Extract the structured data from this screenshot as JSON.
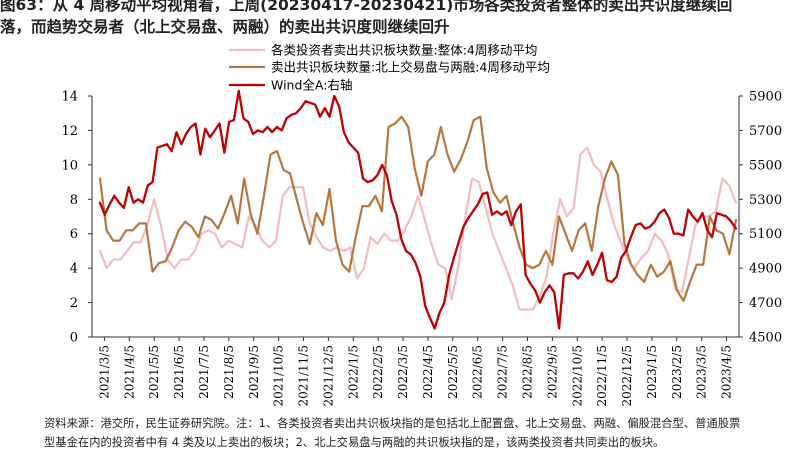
{
  "title": {
    "line1": "图63：从 4 周移动平均视角看，上周(20230417-20230421)市场各类投资者整体的卖出共识度继续回",
    "line2": "落，而趋势交易者（北上交易盘、两融）的卖出共识度则继续回升"
  },
  "source_note": {
    "line1": "资料来源：港交所，民生证券研究院。注：1、各类投资者卖出共识板块指的是包括北上配置盘、北上交易盘、两融、偏股混合型、普通股票",
    "line2": "型基金在内的投资者中有 4 类及以上卖出的板块；2、北上交易盘与两融的共识板块指的是，该两类投资者共同卖出的板块。"
  },
  "colors": {
    "overall": "#f2bcc2",
    "northbound_margin": "#b8763f",
    "wind_a": "#c00000"
  },
  "chart_data": {
    "type": "line",
    "x_ticks": [
      "2021/3/5",
      "2021/4/5",
      "2021/5/5",
      "2021/6/5",
      "2021/7/5",
      "2021/8/5",
      "2021/9/5",
      "2021/10/5",
      "2021/11/5",
      "2021/12/5",
      "2022/1/5",
      "2022/2/5",
      "2022/3/5",
      "2022/4/5",
      "2022/5/5",
      "2022/6/5",
      "2022/7/5",
      "2022/8/5",
      "2022/9/5",
      "2022/10/5",
      "2022/11/5",
      "2022/12/5",
      "2023/1/5",
      "2023/2/5",
      "2023/3/5",
      "2023/4/5"
    ],
    "y_left": {
      "min": 0,
      "max": 14,
      "ticks": [
        0,
        2,
        4,
        6,
        8,
        10,
        12,
        14
      ]
    },
    "y_right": {
      "min": 4500,
      "max": 5900,
      "ticks": [
        4500,
        4700,
        4900,
        5100,
        5300,
        5500,
        5700,
        5900
      ]
    },
    "grid": false,
    "legend_position": "top-center",
    "series": [
      {
        "name": "各类投资者卖出共识板块数量:整体:4周移动平均",
        "axis": "left",
        "values": [
          5.0,
          4.0,
          4.5,
          4.5,
          5.0,
          5.5,
          5.5,
          6.5,
          8.0,
          6.5,
          4.5,
          4.0,
          4.5,
          4.5,
          5.0,
          6.0,
          6.2,
          6.0,
          5.2,
          5.6,
          5.4,
          5.2,
          7.0,
          6.5,
          5.6,
          5.2,
          5.6,
          8.2,
          8.7,
          8.7,
          8.7,
          6.6,
          5.8,
          5.2,
          5.0,
          5.2,
          5.0,
          5.2,
          3.4,
          4.0,
          5.8,
          5.4,
          6.0,
          5.6,
          5.6,
          6.2,
          7.0,
          8.2,
          6.8,
          5.4,
          4.2,
          4.0,
          2.2,
          4.2,
          7.0,
          9.2,
          9.0,
          7.5,
          6.0,
          5.0,
          4.0,
          3.0,
          1.6,
          1.6,
          1.6,
          2.4,
          3.5,
          6.0,
          8.0,
          7.0,
          7.5,
          10.6,
          11.0,
          10.0,
          9.6,
          8.0,
          6.5,
          5.5,
          4.5,
          4.0,
          4.6,
          5.0,
          6.0,
          5.6,
          4.8,
          2.8,
          2.6,
          4.5,
          6.5,
          7.0,
          7.0,
          7.3,
          9.2,
          8.8,
          7.8
        ]
      },
      {
        "name": "卖出共识板块数量:北上交易盘与两融:4周移动平均",
        "axis": "left",
        "values": [
          9.2,
          6.2,
          5.6,
          5.6,
          6.2,
          6.2,
          6.6,
          6.6,
          3.8,
          4.3,
          4.4,
          5.2,
          6.2,
          6.7,
          6.4,
          5.8,
          7.0,
          6.8,
          6.3,
          7.2,
          8.2,
          6.6,
          9.2,
          7.1,
          6.0,
          8.2,
          10.6,
          10.8,
          9.7,
          9.5,
          8.0,
          6.6,
          5.4,
          7.2,
          6.5,
          8.6,
          5.6,
          4.2,
          3.8,
          5.8,
          7.6,
          7.6,
          8.2,
          7.3,
          12.2,
          12.4,
          12.8,
          12.2,
          9.8,
          8.2,
          10.2,
          10.6,
          12.2,
          10.6,
          9.6,
          10.3,
          11.3,
          12.6,
          12.8,
          9.8,
          8.4,
          7.8,
          8.2,
          6.6,
          5.2,
          4.2,
          4.0,
          4.2,
          5.0,
          4.2,
          7.0,
          6.0,
          5.0,
          6.2,
          6.6,
          5.0,
          7.6,
          9.2,
          10.2,
          9.4,
          5.4,
          4.2,
          3.6,
          3.2,
          4.2,
          3.5,
          3.8,
          4.4,
          2.7,
          2.1,
          3.2,
          4.2,
          4.2,
          7.0,
          6.2,
          6.0,
          4.8,
          6.8
        ]
      },
      {
        "name": "Wind全A:右轴",
        "axis": "right",
        "values": [
          5280,
          5210,
          5270,
          5320,
          5280,
          5250,
          5370,
          5280,
          5300,
          5280,
          5380,
          5400,
          5600,
          5610,
          5620,
          5580,
          5690,
          5620,
          5680,
          5720,
          5740,
          5560,
          5710,
          5660,
          5700,
          5740,
          5570,
          5750,
          5760,
          5930,
          5770,
          5750,
          5680,
          5700,
          5690,
          5720,
          5690,
          5720,
          5700,
          5770,
          5790,
          5800,
          5830,
          5870,
          5860,
          5850,
          5780,
          5830,
          5780,
          5900,
          5840,
          5690,
          5630,
          5600,
          5570,
          5420,
          5400,
          5410,
          5440,
          5500,
          5440,
          5290,
          5210,
          5070,
          5000,
          4980,
          4930,
          4850,
          4680,
          4610,
          4550,
          4640,
          4700,
          4860,
          4960,
          5050,
          5140,
          5190,
          5230,
          5270,
          5330,
          5340,
          5210,
          5230,
          5210,
          5230,
          5150,
          5230,
          5270,
          4860,
          4810,
          4770,
          4700,
          4760,
          4800,
          4760,
          4550,
          4860,
          4870,
          4870,
          4840,
          4880,
          4940,
          4860,
          4920,
          4990,
          4830,
          4820,
          4850,
          4960,
          5000,
          5080,
          5150,
          5160,
          5130,
          5140,
          5170,
          5220,
          5240,
          5190,
          5100,
          5100,
          5090,
          5240,
          5200,
          5170,
          5220,
          5120,
          5080,
          5220,
          5210,
          5200,
          5170,
          5130
        ]
      }
    ]
  }
}
